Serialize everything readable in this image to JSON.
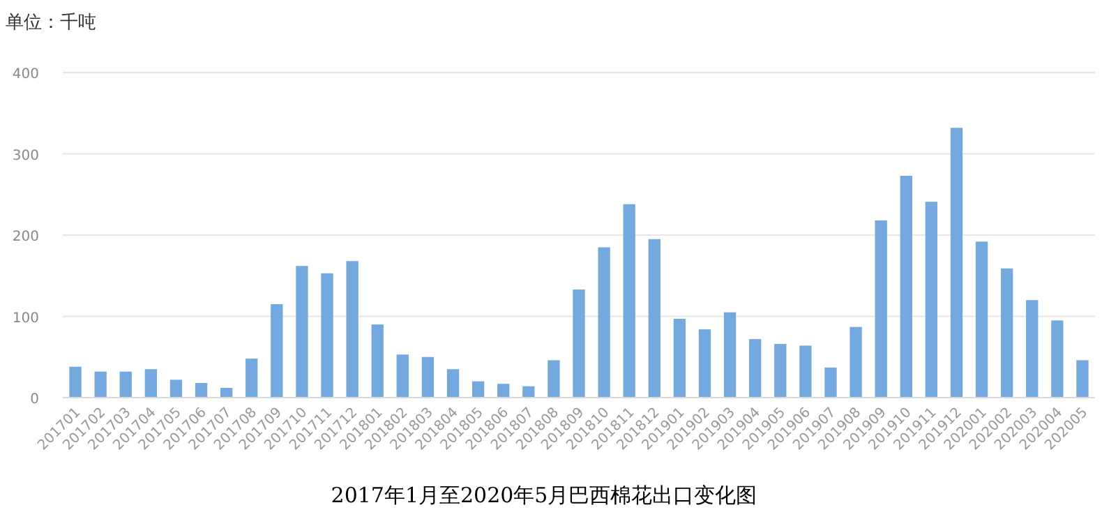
{
  "chart_data": {
    "type": "bar",
    "title": "2017年1月至2020年5月巴西棉花出口变化图",
    "ylabel": "单位：千吨",
    "categories": [
      "201701",
      "201702",
      "201703",
      "201704",
      "201705",
      "201706",
      "201707",
      "201708",
      "201709",
      "201710",
      "201711",
      "201712",
      "201801",
      "201802",
      "201803",
      "201804",
      "201805",
      "201806",
      "201807",
      "201808",
      "201809",
      "201810",
      "201811",
      "201812",
      "201901",
      "201902",
      "201903",
      "201904",
      "201905",
      "201906",
      "201907",
      "201908",
      "201909",
      "201910",
      "201911",
      "201912",
      "202001",
      "202002",
      "202003",
      "202004",
      "202005"
    ],
    "values": [
      38,
      32,
      32,
      35,
      22,
      18,
      12,
      48,
      115,
      162,
      153,
      168,
      90,
      53,
      50,
      35,
      20,
      17,
      14,
      46,
      133,
      185,
      238,
      195,
      97,
      84,
      105,
      72,
      66,
      64,
      37,
      87,
      218,
      273,
      241,
      332,
      192,
      159,
      120,
      95,
      46
    ],
    "color": "#74a9e0",
    "ylim": [
      0,
      400
    ],
    "yticks": [
      0,
      100,
      200,
      300,
      400
    ],
    "grid": "y"
  }
}
